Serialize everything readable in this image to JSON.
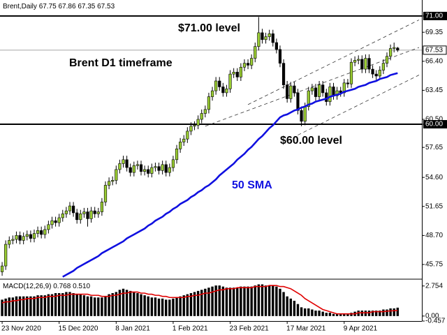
{
  "chart_data": [
    {
      "type": "candlestick",
      "title": "Brent,Daily",
      "categories": [
        "23 Nov 2020",
        null,
        null,
        null,
        null,
        null,
        null,
        null,
        null,
        null,
        null,
        null,
        null,
        null,
        null,
        null,
        "15 Dec 2020",
        null,
        null,
        null,
        null,
        null,
        null,
        null,
        null,
        null,
        null,
        null,
        null,
        null,
        null,
        null,
        "8 Jan 2021",
        null,
        null,
        null,
        null,
        null,
        null,
        null,
        null,
        null,
        null,
        null,
        null,
        null,
        null,
        null,
        "1 Feb 2021",
        null,
        null,
        null,
        null,
        null,
        null,
        null,
        null,
        null,
        null,
        null,
        null,
        null,
        null,
        null,
        "23 Feb 2021",
        null,
        null,
        null,
        null,
        null,
        null,
        null,
        null,
        null,
        null,
        null,
        null,
        null,
        null,
        null,
        "17 Mar 2021",
        null,
        null,
        null,
        null,
        null,
        null,
        null,
        null,
        null,
        null,
        null,
        null,
        null,
        null,
        null,
        "9 Apr 2021",
        null,
        null,
        null,
        null,
        null,
        null,
        null,
        null,
        null,
        null,
        null,
        null,
        null,
        null,
        null
      ],
      "open": [
        45.0,
        45.6,
        47.8,
        48.2,
        48.3,
        48.7,
        48.2,
        48.6,
        48.8,
        48.4,
        48.9,
        49.2,
        48.8,
        49.3,
        49.8,
        50.2,
        50.0,
        50.5,
        50.9,
        51.2,
        51.7,
        51.0,
        50.3,
        50.9,
        51.1,
        50.4,
        51.2,
        50.9,
        51.1,
        52.1,
        53.8,
        54.2,
        54.3,
        55.4,
        56.0,
        56.4,
        55.6,
        55.1,
        55.8,
        55.9,
        55.2,
        55.4,
        55.0,
        55.6,
        55.7,
        55.3,
        55.9,
        55.1,
        55.6,
        56.4,
        57.5,
        58.2,
        58.5,
        59.3,
        59.8,
        59.9,
        60.5,
        61.1,
        61.5,
        62.8,
        63.4,
        64.4,
        63.8,
        63.2,
        63.6,
        65.1,
        65.3,
        64.8,
        65.8,
        66.2,
        66.0,
        66.7,
        67.9,
        69.3,
        68.6,
        68.9,
        69.2,
        68.3,
        67.6,
        66.2,
        64.0,
        62.6,
        63.9,
        63.2,
        61.4,
        60.3,
        61.8,
        63.4,
        63.7,
        62.8,
        64.0,
        63.2,
        62.3,
        63.8,
        62.9,
        63.4,
        63.2,
        64.2,
        64.1,
        66.3,
        66.5,
        66.6,
        65.6,
        66.7,
        65.6,
        65.1,
        64.9,
        65.5,
        66.2,
        66.9,
        67.7,
        67.75
      ],
      "high": [
        46.0,
        48.2,
        48.6,
        48.7,
        49.1,
        49.1,
        49.0,
        49.2,
        49.2,
        49.3,
        49.6,
        49.6,
        49.7,
        50.2,
        50.6,
        50.6,
        50.9,
        51.3,
        51.6,
        52.1,
        52.1,
        51.4,
        51.3,
        51.5,
        51.5,
        51.6,
        51.6,
        51.5,
        52.5,
        54.2,
        54.6,
        54.7,
        55.8,
        56.4,
        56.8,
        56.8,
        56.0,
        56.2,
        56.3,
        56.3,
        55.8,
        55.8,
        56.0,
        56.1,
        56.1,
        56.3,
        56.3,
        56.0,
        56.8,
        57.9,
        58.6,
        58.9,
        59.7,
        60.2,
        60.3,
        60.9,
        61.5,
        61.9,
        63.2,
        63.8,
        64.8,
        64.8,
        64.2,
        64.0,
        65.5,
        65.7,
        65.7,
        66.2,
        66.6,
        66.6,
        67.1,
        68.3,
        70.9,
        69.7,
        69.3,
        69.6,
        69.6,
        68.7,
        68.0,
        66.6,
        64.4,
        64.3,
        64.3,
        63.6,
        61.8,
        62.2,
        63.8,
        64.1,
        64.1,
        64.4,
        64.4,
        63.6,
        64.2,
        64.2,
        63.8,
        63.8,
        64.6,
        64.6,
        66.7,
        66.9,
        67.0,
        67.0,
        67.1,
        67.1,
        66.0,
        65.5,
        65.9,
        66.6,
        67.3,
        68.1,
        68.3,
        67.86
      ],
      "low": [
        44.6,
        45.2,
        47.4,
        47.8,
        47.9,
        47.8,
        47.8,
        48.2,
        48.0,
        48.0,
        48.5,
        48.4,
        48.4,
        48.9,
        49.4,
        49.6,
        49.6,
        50.1,
        50.5,
        50.8,
        50.6,
        49.9,
        49.9,
        50.5,
        49.6,
        50.0,
        50.5,
        50.5,
        50.7,
        51.7,
        53.4,
        53.8,
        53.9,
        55.0,
        55.6,
        55.2,
        54.7,
        54.7,
        55.4,
        54.8,
        54.8,
        54.6,
        54.6,
        55.2,
        54.9,
        54.9,
        54.7,
        54.7,
        55.2,
        56.0,
        57.1,
        57.8,
        58.1,
        58.9,
        59.4,
        59.5,
        60.1,
        60.7,
        61.1,
        62.4,
        63.0,
        63.4,
        62.8,
        62.8,
        63.2,
        64.7,
        64.4,
        64.4,
        65.4,
        65.6,
        65.6,
        66.3,
        67.5,
        68.2,
        68.2,
        68.5,
        67.9,
        67.2,
        65.8,
        63.6,
        62.2,
        62.2,
        62.8,
        61.0,
        59.8,
        59.9,
        61.4,
        63.0,
        62.4,
        62.4,
        62.8,
        61.9,
        61.9,
        62.5,
        62.5,
        62.8,
        62.8,
        63.7,
        63.7,
        65.9,
        66.1,
        65.2,
        65.2,
        65.2,
        64.7,
        64.5,
        64.5,
        65.1,
        65.8,
        66.5,
        67.3,
        67.35
      ],
      "close": [
        45.6,
        47.8,
        48.2,
        48.3,
        48.7,
        48.2,
        48.6,
        48.8,
        48.4,
        48.9,
        49.2,
        48.8,
        49.3,
        49.8,
        50.2,
        50.0,
        50.5,
        50.9,
        51.2,
        51.7,
        51.0,
        50.3,
        50.9,
        51.1,
        50.4,
        51.2,
        50.9,
        51.1,
        52.1,
        53.8,
        54.2,
        54.3,
        55.4,
        56.0,
        56.4,
        55.6,
        55.1,
        55.8,
        55.9,
        55.2,
        55.4,
        55.0,
        55.6,
        55.7,
        55.3,
        55.9,
        55.1,
        55.6,
        56.4,
        57.5,
        58.2,
        58.5,
        59.3,
        59.8,
        59.9,
        60.5,
        61.1,
        61.5,
        62.8,
        63.4,
        64.4,
        63.8,
        63.2,
        63.6,
        65.1,
        65.3,
        64.8,
        65.8,
        66.2,
        66.0,
        66.7,
        67.9,
        69.3,
        68.6,
        68.9,
        69.2,
        68.3,
        67.6,
        66.2,
        64.0,
        62.6,
        63.9,
        63.2,
        61.4,
        60.3,
        61.8,
        63.4,
        63.7,
        62.8,
        64.0,
        63.2,
        62.3,
        63.8,
        62.9,
        63.4,
        63.2,
        64.2,
        64.1,
        66.3,
        66.5,
        66.6,
        65.6,
        66.7,
        65.6,
        65.1,
        64.9,
        65.5,
        66.2,
        66.9,
        67.7,
        67.8,
        67.53
      ],
      "up_color": "#9acd32",
      "down_color": "#000000",
      "sma": {
        "name": "50 SMA",
        "color": "#1010e0",
        "values": [
          null,
          null,
          null,
          null,
          null,
          null,
          null,
          null,
          null,
          null,
          null,
          null,
          null,
          null,
          null,
          null,
          null,
          44.5,
          44.7,
          44.9,
          45.1,
          45.4,
          45.6,
          45.8,
          46.0,
          46.2,
          46.4,
          46.6,
          46.9,
          47.1,
          47.3,
          47.5,
          47.7,
          47.9,
          48.1,
          48.4,
          48.6,
          48.8,
          49.0,
          49.2,
          49.4,
          49.7,
          49.9,
          50.2,
          50.4,
          50.6,
          50.9,
          51.1,
          51.4,
          51.6,
          51.9,
          52.1,
          52.3,
          52.6,
          52.8,
          53.1,
          53.3,
          53.6,
          53.8,
          54.1,
          54.4,
          54.8,
          55.1,
          55.4,
          55.7,
          56.0,
          56.4,
          56.7,
          57.0,
          57.4,
          57.7,
          58.1,
          58.5,
          58.8,
          59.2,
          59.6,
          59.9,
          60.3,
          60.7,
          60.9,
          61.0,
          61.2,
          61.4,
          61.5,
          61.7,
          61.8,
          62.0,
          62.1,
          62.3,
          62.4,
          62.5,
          62.6,
          62.8,
          62.9,
          63.0,
          63.1,
          63.3,
          63.4,
          63.5,
          63.6,
          63.8,
          63.9,
          64.0,
          64.2,
          64.3,
          64.4,
          64.6,
          64.7,
          64.8,
          65.0,
          65.1,
          65.2
        ]
      },
      "levels": [
        71,
        60
      ],
      "trendlines": [
        {
          "x": [
            69,
            117
          ],
          "y": [
            62.0,
            70.6
          ]
        },
        {
          "x": [
            57,
            117
          ],
          "y": [
            59.8,
            67.8
          ]
        },
        {
          "x": [
            83,
            117
          ],
          "y": [
            58.9,
            65.0
          ]
        }
      ],
      "annotations": [
        "$71.00 level",
        "Brent D1 timeframe",
        "$60.00 level"
      ],
      "xlim": [
        -0.6,
        117.8
      ],
      "ylim": [
        44.4,
        71.35
      ],
      "yticks": [
        {
          "value": 71,
          "label": "71.00"
        },
        69.35,
        {
          "value": 66.4,
          "label": "66.40"
        },
        63.45,
        {
          "value": 60.5,
          "label": "60.50"
        },
        {
          "value": 60,
          "label": "60.00"
        },
        57.65,
        {
          "value": 54.6,
          "label": "54.60"
        },
        51.65,
        {
          "value": 48.7,
          "label": "48.70"
        },
        45.75
      ]
    },
    {
      "type": "macd",
      "title": "MACD(12,26,9)",
      "series": [
        {
          "name": "histogram",
          "color": "#000000",
          "values": [
            1.5,
            1.6,
            1.7,
            1.7,
            1.8,
            1.8,
            1.8,
            1.8,
            1.8,
            1.8,
            1.9,
            1.9,
            1.9,
            2.0,
            2.0,
            2.1,
            2.1,
            2.1,
            2.2,
            2.2,
            2.1,
            2.0,
            2.0,
            1.9,
            1.8,
            1.8,
            1.7,
            1.7,
            1.7,
            1.8,
            2.0,
            2.1,
            2.2,
            2.4,
            2.5,
            2.4,
            2.3,
            2.2,
            2.1,
            2.0,
            1.9,
            1.8,
            1.7,
            1.7,
            1.6,
            1.6,
            1.5,
            1.5,
            1.6,
            1.7,
            1.8,
            1.9,
            2.0,
            2.1,
            2.2,
            2.3,
            2.4,
            2.5,
            2.6,
            2.7,
            2.8,
            2.8,
            2.7,
            2.6,
            2.6,
            2.6,
            2.6,
            2.7,
            2.7,
            2.7,
            2.7,
            2.8,
            2.9,
            2.9,
            2.8,
            2.8,
            2.8,
            2.7,
            2.5,
            2.2,
            1.8,
            1.6,
            1.4,
            1.1,
            0.8,
            0.7,
            0.7,
            0.6,
            0.5,
            0.5,
            0.4,
            0.3,
            0.3,
            0.2,
            0.2,
            0.2,
            0.2,
            0.2,
            0.3,
            0.4,
            0.5,
            0.5,
            0.5,
            0.5,
            0.5,
            0.5,
            0.5,
            0.6,
            0.6,
            0.7,
            0.7,
            0.768
          ]
        },
        {
          "name": "signal",
          "color": "#e00000",
          "values": [
            1.2,
            1.3,
            1.3,
            1.4,
            1.4,
            1.5,
            1.5,
            1.6,
            1.6,
            1.6,
            1.7,
            1.7,
            1.7,
            1.8,
            1.8,
            1.8,
            1.9,
            1.9,
            1.9,
            2.0,
            2.0,
            2.0,
            2.0,
            2.0,
            2.0,
            1.9,
            1.9,
            1.9,
            1.8,
            1.8,
            1.8,
            1.9,
            1.9,
            2.0,
            2.1,
            2.1,
            2.2,
            2.2,
            2.2,
            2.1,
            2.1,
            2.0,
            2.0,
            1.9,
            1.9,
            1.8,
            1.8,
            1.7,
            1.7,
            1.7,
            1.7,
            1.7,
            1.8,
            1.8,
            1.9,
            1.9,
            2.0,
            2.1,
            2.1,
            2.2,
            2.3,
            2.4,
            2.4,
            2.5,
            2.5,
            2.5,
            2.6,
            2.6,
            2.6,
            2.6,
            2.6,
            2.7,
            2.7,
            2.7,
            2.7,
            2.8,
            2.8,
            2.8,
            2.7,
            2.7,
            2.6,
            2.5,
            2.3,
            2.1,
            1.9,
            1.6,
            1.4,
            1.2,
            1.0,
            0.8,
            0.6,
            0.5,
            0.4,
            0.3,
            0.2,
            0.2,
            0.2,
            0.2,
            0.2,
            0.2,
            0.3,
            0.3,
            0.3,
            0.3,
            0.4,
            0.4,
            0.4,
            0.4,
            0.45,
            0.47,
            0.49,
            0.51
          ],
          "value_labels": [
            null,
            null,
            null,
            null,
            null,
            null,
            null,
            null,
            null,
            null,
            null,
            null,
            null,
            null,
            null,
            null,
            null,
            null,
            null,
            null,
            null,
            null,
            null,
            null,
            null,
            null,
            null,
            null,
            null,
            null,
            null,
            null,
            null,
            null,
            null,
            null,
            null,
            null,
            null,
            null,
            null,
            null,
            null,
            null,
            null,
            null,
            null,
            null,
            null,
            null,
            null,
            null,
            null,
            null,
            null,
            null,
            null,
            null,
            null,
            null,
            null,
            null,
            null,
            null,
            null,
            null,
            null,
            null,
            null,
            null,
            null,
            null,
            null,
            null,
            null,
            null,
            null,
            null,
            null,
            null,
            null,
            null,
            null,
            null,
            null,
            null,
            null,
            null,
            null,
            null,
            null,
            null,
            null,
            null,
            null,
            null,
            null,
            null,
            null,
            null,
            null,
            null,
            null,
            null,
            null,
            null,
            null,
            null,
            null,
            null,
            null,
            "0.510"
          ]
        }
      ],
      "ylim": [
        -0.457,
        3.25
      ],
      "yticks": [
        2.754,
        {
          "value": 0,
          "label": "0.00"
        },
        -0.457
      ]
    }
  ]
}
